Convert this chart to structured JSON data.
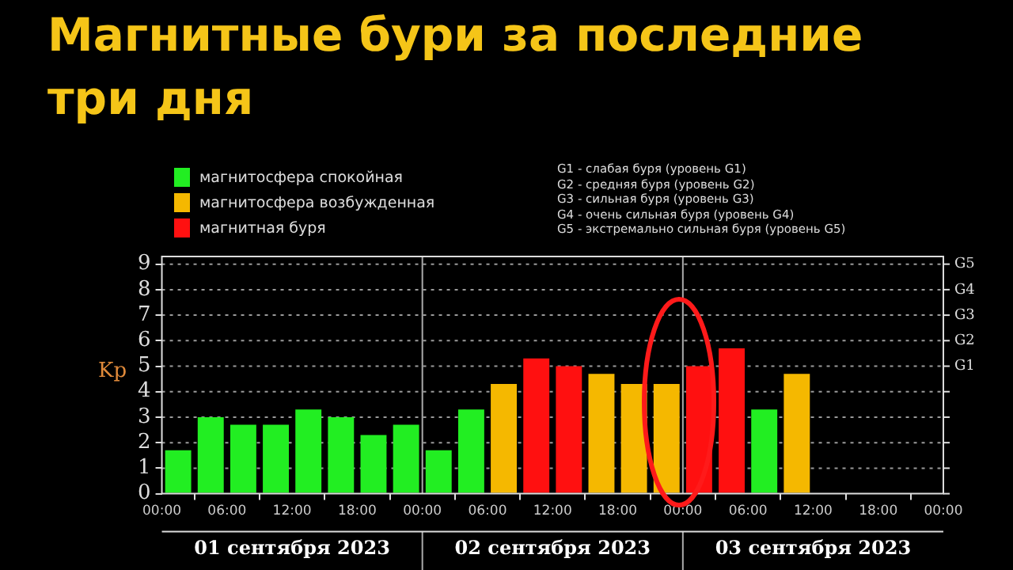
{
  "chart_data": {
    "type": "bar",
    "title": "Магнитные бури за последние три дня",
    "ylabel": "Kp",
    "x": [
      "2023-09-01T01:30",
      "2023-09-01T04:30",
      "2023-09-01T07:30",
      "2023-09-01T10:30",
      "2023-09-01T13:30",
      "2023-09-01T16:30",
      "2023-09-01T19:30",
      "2023-09-01T22:30",
      "2023-09-02T01:30",
      "2023-09-02T04:30",
      "2023-09-02T07:30",
      "2023-09-02T10:30",
      "2023-09-02T13:30",
      "2023-09-02T16:30",
      "2023-09-02T19:30",
      "2023-09-02T22:30",
      "2023-09-03T01:30",
      "2023-09-03T04:30",
      "2023-09-03T07:30",
      "2023-09-03T10:30"
    ],
    "series": [
      {
        "name": "магнитосфера спокойная",
        "color": "#22ee22",
        "values": [
          1.7,
          3.0,
          2.7,
          2.7,
          3.3,
          3.0,
          2.3,
          2.7,
          1.7,
          3.3,
          null,
          null,
          null,
          null,
          null,
          null,
          null,
          null,
          3.3,
          null
        ]
      },
      {
        "name": "магнитосфера возбужденная",
        "color": "#f5b800",
        "values": [
          null,
          null,
          null,
          null,
          null,
          null,
          null,
          null,
          null,
          null,
          4.3,
          null,
          null,
          4.7,
          4.3,
          4.3,
          null,
          null,
          null,
          4.7
        ]
      },
      {
        "name": "магнитная буря",
        "color": "#ff1010",
        "values": [
          null,
          null,
          null,
          null,
          null,
          null,
          null,
          null,
          null,
          null,
          null,
          5.3,
          5.0,
          null,
          null,
          null,
          5.0,
          5.7,
          null,
          null
        ]
      }
    ],
    "xlim": [
      "2023-09-01T00:00",
      "2023-09-04T00:00"
    ],
    "xticks": [
      {
        "value": "2023-09-01T00:00",
        "label": "00:00"
      },
      {
        "value": "2023-09-01T06:00",
        "label": "06:00"
      },
      {
        "value": "2023-09-01T12:00",
        "label": "12:00"
      },
      {
        "value": "2023-09-01T18:00",
        "label": "18:00"
      },
      {
        "value": "2023-09-02T00:00",
        "label": "00:00"
      },
      {
        "value": "2023-09-02T06:00",
        "label": "06:00"
      },
      {
        "value": "2023-09-02T12:00",
        "label": "12:00"
      },
      {
        "value": "2023-09-02T18:00",
        "label": "18:00"
      },
      {
        "value": "2023-09-03T00:00",
        "label": "00:00"
      },
      {
        "value": "2023-09-03T06:00",
        "label": "06:00"
      },
      {
        "value": "2023-09-03T12:00",
        "label": "12:00"
      },
      {
        "value": "2023-09-03T18:00",
        "label": "18:00"
      },
      {
        "value": "2023-09-04T00:00",
        "label": "00:00"
      }
    ],
    "ylim": [
      0,
      9.3
    ],
    "yticks": [
      0,
      1,
      2,
      3,
      4,
      5,
      6,
      7,
      8,
      9
    ],
    "ref_lines": [
      {
        "axis": "x",
        "value": "2023-09-02T00:00",
        "color": "#aaaaaa"
      },
      {
        "axis": "x",
        "value": "2023-09-03T00:00",
        "color": "#aaaaaa"
      }
    ],
    "annotations": [
      "G1",
      "G2",
      "G3",
      "G4",
      "G5",
      "01 сентября 2023",
      "02 сентября 2023",
      "03 сентября 2023",
      "G1 - слабая буря (уровень G1)",
      "G2 - средняя буря (уровень G2)",
      "G3 - сильная буря (уровень G3)",
      "G4 - очень сильная буря (уровень G4)",
      "G5 - экстремально сильная буря (уровень G5)"
    ],
    "grid": "y",
    "legend": "top left"
  }
}
